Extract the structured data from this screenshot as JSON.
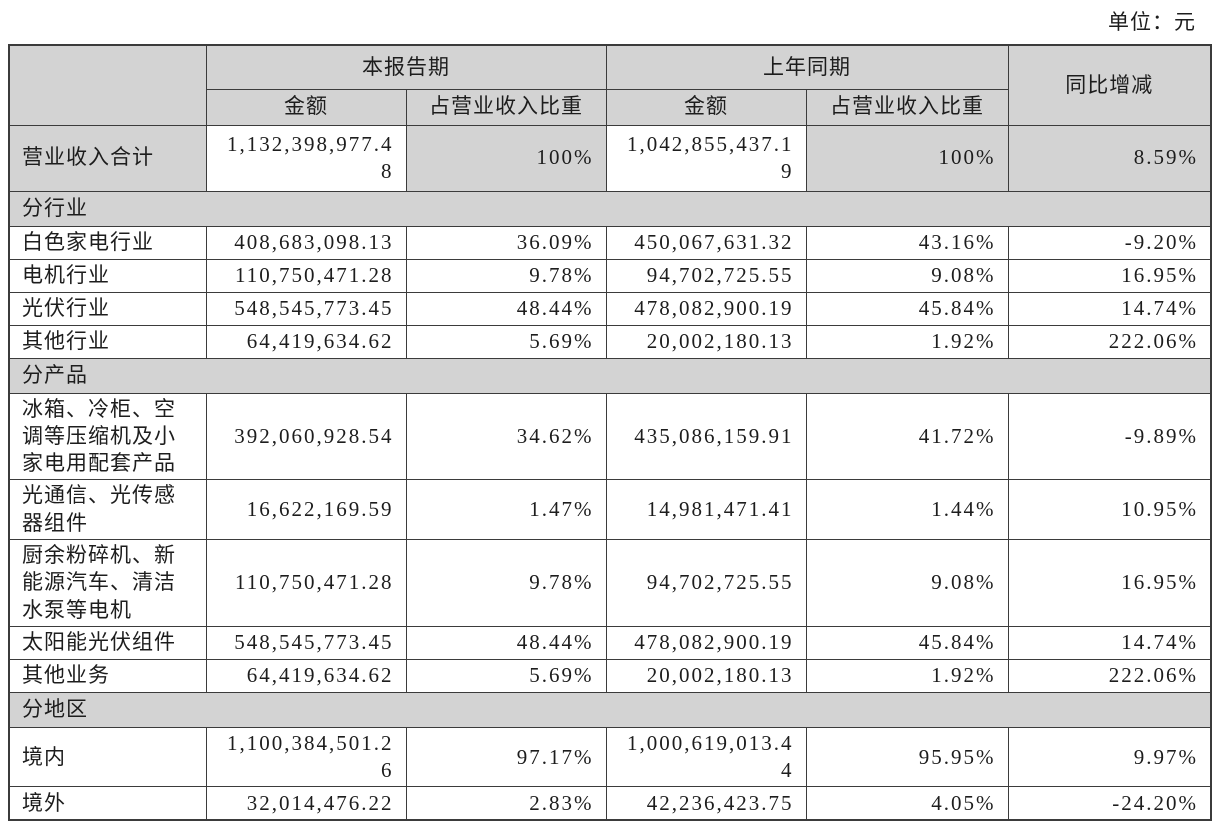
{
  "page": {
    "unit_label": "单位：元"
  },
  "colors": {
    "header_bg": "#d3d3d3",
    "border": "#3b3b3b",
    "text": "#1d1d1d"
  },
  "table": {
    "header": {
      "corner": "",
      "current_period": "本报告期",
      "prior_period": "上年同期",
      "yoy": "同比增减",
      "amount": "金额",
      "ratio": "占营业收入比重"
    },
    "rows": [
      {
        "type": "total",
        "label": "营业收入合计",
        "cells": [
          "1,132,398,977.48",
          "100%",
          "1,042,855,437.19",
          "100%",
          "8.59%"
        ]
      },
      {
        "type": "section",
        "label": "分行业"
      },
      {
        "type": "data",
        "label": "白色家电行业",
        "cells": [
          "408,683,098.13",
          "36.09%",
          "450,067,631.32",
          "43.16%",
          "-9.20%"
        ]
      },
      {
        "type": "data",
        "label": "电机行业",
        "cells": [
          "110,750,471.28",
          "9.78%",
          "94,702,725.55",
          "9.08%",
          "16.95%"
        ]
      },
      {
        "type": "data",
        "label": "光伏行业",
        "cells": [
          "548,545,773.45",
          "48.44%",
          "478,082,900.19",
          "45.84%",
          "14.74%"
        ]
      },
      {
        "type": "data",
        "label": "其他行业",
        "cells": [
          "64,419,634.62",
          "5.69%",
          "20,002,180.13",
          "1.92%",
          "222.06%"
        ]
      },
      {
        "type": "section",
        "label": "分产品"
      },
      {
        "type": "data",
        "label": "冰箱、冷柜、空调等压缩机及小家电用配套产品",
        "cells": [
          "392,060,928.54",
          "34.62%",
          "435,086,159.91",
          "41.72%",
          "-9.89%"
        ]
      },
      {
        "type": "data",
        "label": "光通信、光传感器组件",
        "cells": [
          "16,622,169.59",
          "1.47%",
          "14,981,471.41",
          "1.44%",
          "10.95%"
        ]
      },
      {
        "type": "data",
        "label": "厨余粉碎机、新能源汽车、清洁水泵等电机",
        "cells": [
          "110,750,471.28",
          "9.78%",
          "94,702,725.55",
          "9.08%",
          "16.95%"
        ]
      },
      {
        "type": "data",
        "label": "太阳能光伏组件",
        "cells": [
          "548,545,773.45",
          "48.44%",
          "478,082,900.19",
          "45.84%",
          "14.74%"
        ]
      },
      {
        "type": "data",
        "label": "其他业务",
        "cells": [
          "64,419,634.62",
          "5.69%",
          "20,002,180.13",
          "1.92%",
          "222.06%"
        ]
      },
      {
        "type": "section",
        "label": "分地区"
      },
      {
        "type": "data",
        "label": "境内",
        "cells": [
          "1,100,384,501.26",
          "97.17%",
          "1,000,619,013.44",
          "95.95%",
          "9.97%"
        ]
      },
      {
        "type": "data",
        "label": "境外",
        "cells": [
          "32,014,476.22",
          "2.83%",
          "42,236,423.75",
          "4.05%",
          "-24.20%"
        ]
      }
    ]
  }
}
